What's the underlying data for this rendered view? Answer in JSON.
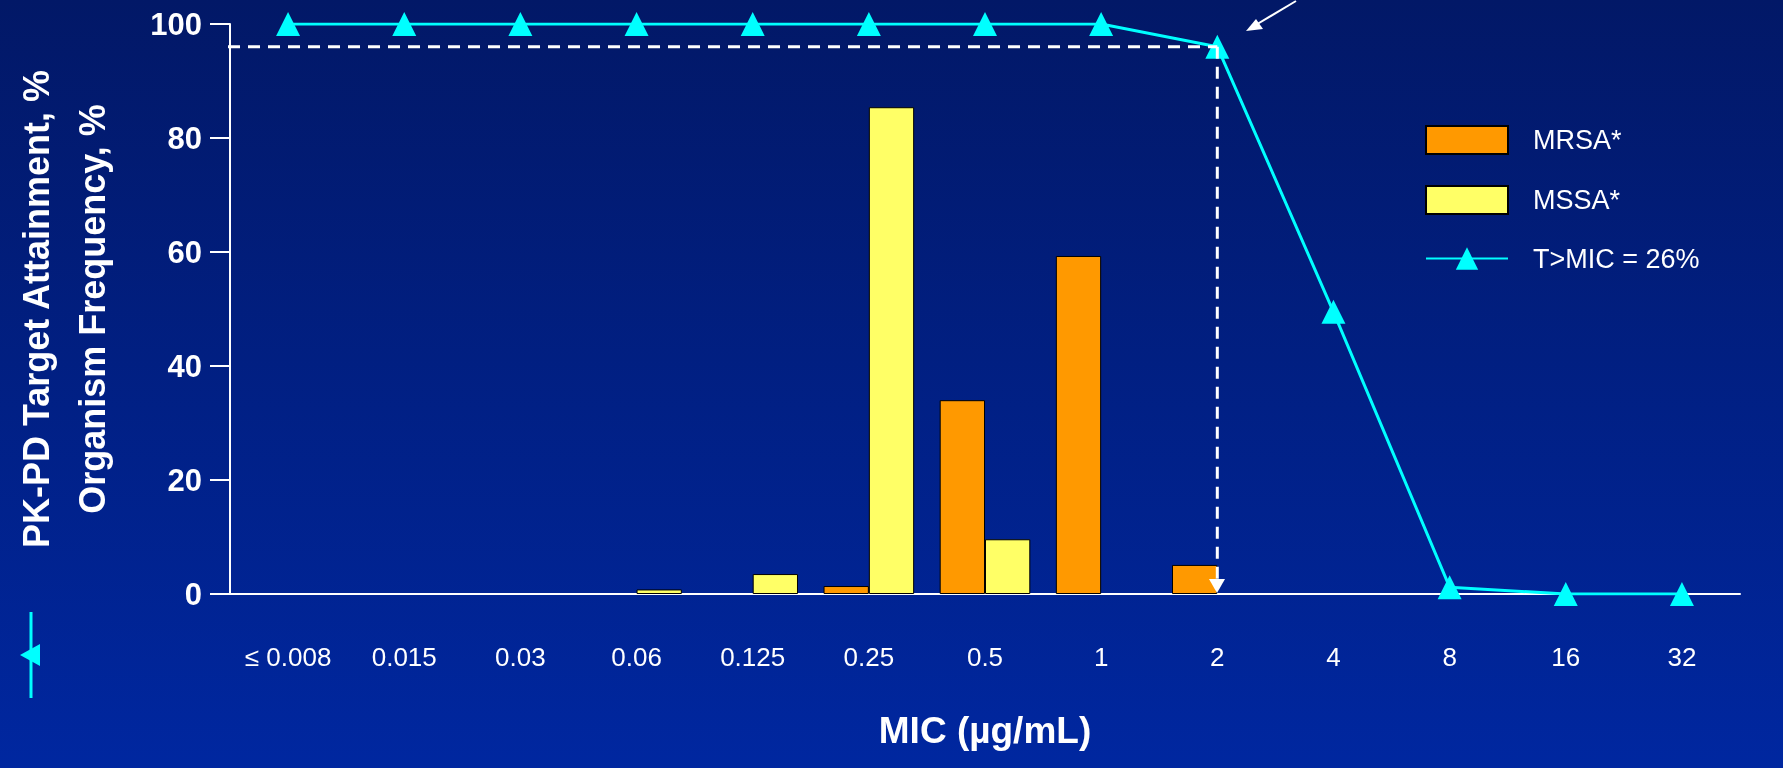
{
  "chart_data": {
    "type": "bar",
    "xlabel": "MIC (µg/mL)",
    "ylabel": "PK-PD Target Attainment, %\nOrganism Frequency, %",
    "categories": [
      "≤ 0.008",
      "0.015",
      "0.03",
      "0.06",
      "0.125",
      "0.25",
      "0.5",
      "1",
      "2",
      "4",
      "8",
      "16",
      "32"
    ],
    "series": [
      {
        "name": "MRSA*",
        "color": "#ff9900",
        "values": [
          0,
          0,
          0,
          0,
          0,
          1.4,
          34,
          59.3,
          5.1,
          0,
          0,
          0,
          0
        ]
      },
      {
        "name": "MSSA*",
        "color": "#ffff66",
        "values": [
          0,
          0,
          0,
          0.8,
          3.5,
          85.4,
          9.6,
          0,
          0,
          0,
          0,
          0,
          0
        ]
      },
      {
        "name": "T>MIC = 26%",
        "type": "line",
        "color": "#00ffff",
        "marker": "triangle",
        "values": [
          100,
          100,
          100,
          100,
          100,
          100,
          100,
          100,
          96,
          49.5,
          1.2,
          0,
          0
        ]
      }
    ],
    "ylim": [
      0,
      100
    ],
    "yticks": [
      0,
      20,
      40,
      60,
      80,
      100
    ],
    "grid": false,
    "legend": "top right",
    "ref_lines": [
      {
        "axis": "y",
        "value": 96,
        "color": "#ffffff",
        "line_style": "dashed"
      },
      {
        "axis": "x",
        "value": "2",
        "color": "#ffffff",
        "line_style": "dashed"
      }
    ]
  }
}
